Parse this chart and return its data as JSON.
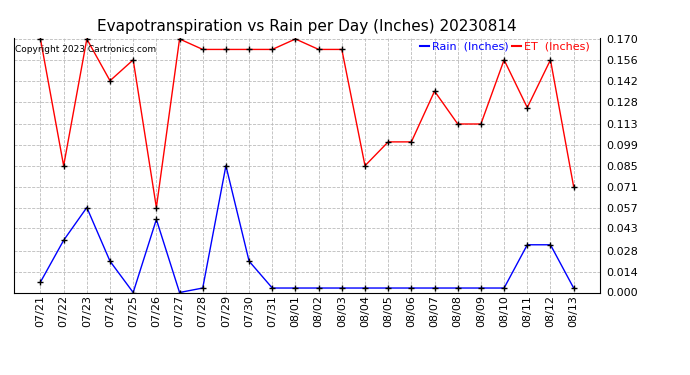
{
  "title": "Evapotranspiration vs Rain per Day (Inches) 20230814",
  "copyright": "Copyright 2023 Cartronics.com",
  "dates": [
    "07/21",
    "07/22",
    "07/23",
    "07/24",
    "07/25",
    "07/26",
    "07/27",
    "07/28",
    "07/29",
    "07/30",
    "07/31",
    "08/01",
    "08/02",
    "08/03",
    "08/04",
    "08/05",
    "08/06",
    "08/07",
    "08/08",
    "08/09",
    "08/10",
    "08/11",
    "08/12",
    "08/13"
  ],
  "et_values": [
    0.17,
    0.085,
    0.17,
    0.142,
    0.156,
    0.057,
    0.17,
    0.163,
    0.163,
    0.163,
    0.163,
    0.17,
    0.163,
    0.163,
    0.085,
    0.101,
    0.101,
    0.135,
    0.113,
    0.113,
    0.156,
    0.124,
    0.156,
    0.071
  ],
  "rain_values": [
    0.007,
    0.035,
    0.057,
    0.021,
    0.0,
    0.049,
    0.0,
    0.003,
    0.085,
    0.021,
    0.003,
    0.003,
    0.003,
    0.003,
    0.003,
    0.003,
    0.003,
    0.003,
    0.003,
    0.003,
    0.003,
    0.032,
    0.032,
    0.003
  ],
  "et_color": "red",
  "rain_color": "blue",
  "ylim_min": 0.0,
  "ylim_max": 0.17,
  "yticks": [
    0.0,
    0.014,
    0.028,
    0.043,
    0.057,
    0.071,
    0.085,
    0.099,
    0.113,
    0.128,
    0.142,
    0.156,
    0.17
  ],
  "background_color": "white",
  "grid_color": "#bbbbbb",
  "title_fontsize": 11,
  "tick_fontsize": 8,
  "legend_rain_label": "Rain  (Inches)",
  "legend_et_label": "ET  (Inches)"
}
